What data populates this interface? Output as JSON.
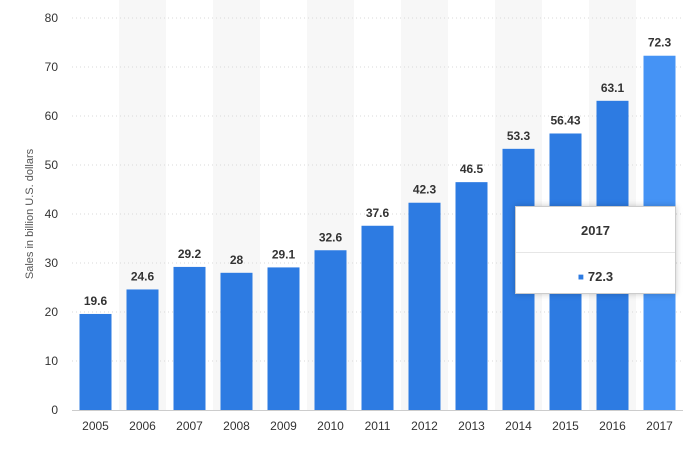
{
  "chart_data": {
    "type": "bar",
    "categories": [
      "2005",
      "2006",
      "2007",
      "2008",
      "2009",
      "2010",
      "2011",
      "2012",
      "2013",
      "2014",
      "2015",
      "2016",
      "2017"
    ],
    "values": [
      19.6,
      24.6,
      29.2,
      28,
      29.1,
      32.6,
      37.6,
      42.3,
      46.5,
      53.3,
      56.43,
      63.1,
      72.3
    ],
    "data_labels": [
      "19.6",
      "24.6",
      "29.2",
      "28",
      "29.1",
      "32.6",
      "37.6",
      "42.3",
      "46.5",
      "53.3",
      "56.43",
      "63.1",
      "72.3"
    ],
    "title": "",
    "xlabel": "",
    "ylabel": "Sales in billion U.S. dollars",
    "ylim": [
      0,
      80
    ],
    "yticks": [
      "0",
      "10",
      "20",
      "30",
      "40",
      "50",
      "60",
      "70",
      "80"
    ],
    "grid": "horizontal dotted",
    "highlighted_category": "2017",
    "colors": {
      "bar": "#2d7be2",
      "bar_highlight": "#4593f5",
      "band": "#f7f7f7",
      "grid": "#d8d8d8"
    }
  },
  "tooltip": {
    "title": "2017",
    "value": "72.3",
    "marker_icon": "square-bullet-icon"
  }
}
